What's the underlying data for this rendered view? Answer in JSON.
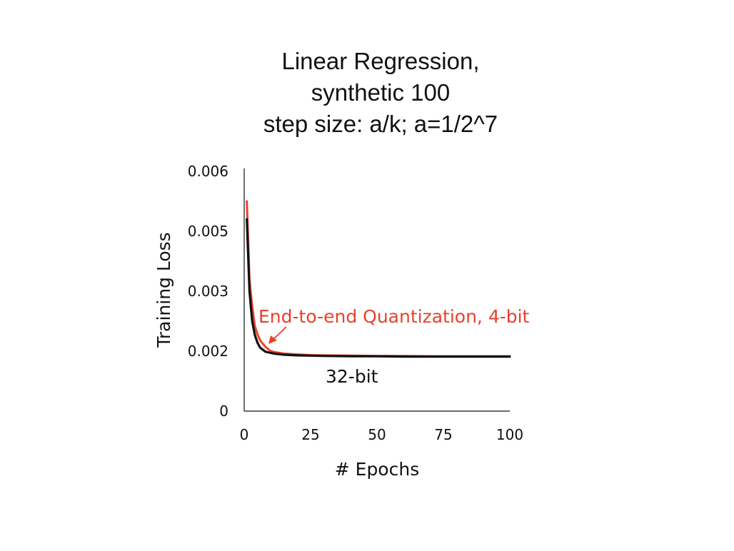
{
  "chart_data": {
    "type": "line",
    "title": [
      "Linear Regression,",
      "synthetic 100",
      "step size: a/k; a=1/2^7"
    ],
    "xlabel": "# Epochs",
    "ylabel": "Training Loss",
    "xlim": [
      0,
      100
    ],
    "ylim": [
      0,
      0.006
    ],
    "x_ticks": [
      0,
      25,
      50,
      75,
      100
    ],
    "x_tick_labels": [
      "0",
      "25",
      "50",
      "75",
      "100"
    ],
    "y_ticks": [
      0,
      0.002,
      0.003,
      0.005,
      0.006
    ],
    "y_tick_labels": [
      "0",
      "0.002",
      "0.003",
      "0.005",
      "0.006"
    ],
    "grid": false,
    "series": [
      {
        "name": "End-to-end Quantization, 4-bit",
        "color": "#e8412c",
        "x": [
          1,
          2,
          3,
          4,
          5,
          6,
          8,
          10,
          12,
          15,
          20,
          25,
          30,
          40,
          50,
          60,
          70,
          80,
          90,
          100
        ],
        "y": [
          0.0055,
          0.0034,
          0.00275,
          0.00242,
          0.00228,
          0.00218,
          0.00207,
          0.002,
          0.00196,
          0.00192,
          0.00189,
          0.00187,
          0.00186,
          0.00185,
          0.00184,
          0.00184,
          0.00183,
          0.00183,
          0.00183,
          0.00183
        ]
      },
      {
        "name": "32-bit",
        "color": "#111111",
        "x": [
          1,
          2,
          3,
          4,
          5,
          6,
          8,
          10,
          12,
          15,
          20,
          25,
          30,
          40,
          50,
          60,
          70,
          80,
          90,
          100
        ],
        "y": [
          0.0052,
          0.003,
          0.0025,
          0.00227,
          0.00214,
          0.00206,
          0.00198,
          0.00194,
          0.00191,
          0.00188,
          0.00186,
          0.00185,
          0.00184,
          0.00183,
          0.00183,
          0.00182,
          0.00182,
          0.00182,
          0.00182,
          0.00182
        ]
      }
    ],
    "annotations": [
      {
        "text": "End-to-end Quantization, 4-bit",
        "color": "#e8412c",
        "arrow_to": [
          9,
          0.00207
        ]
      },
      {
        "text": "32-bit",
        "color": "#111111"
      }
    ]
  }
}
